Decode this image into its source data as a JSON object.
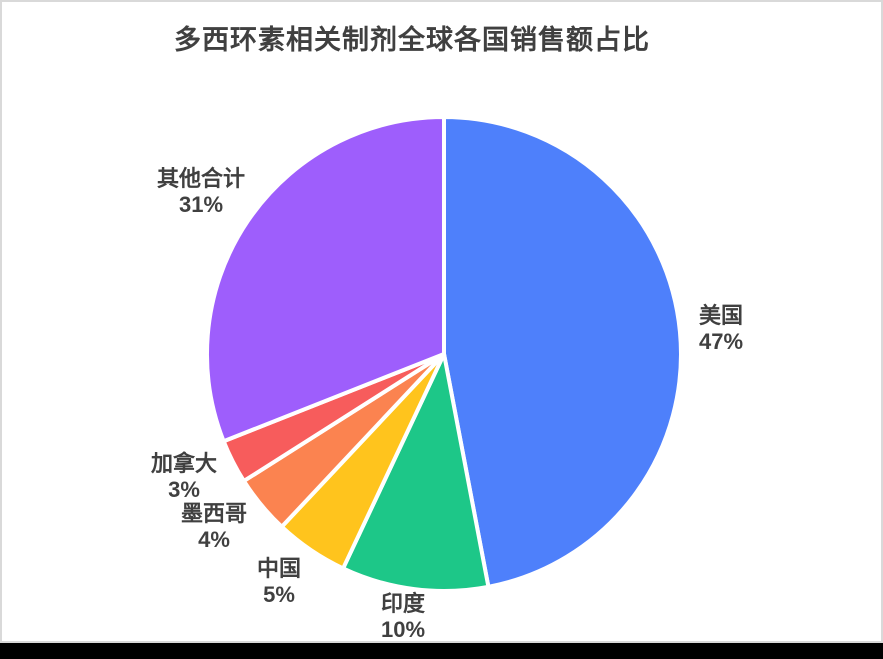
{
  "chart_data": {
    "type": "pie",
    "title": "多西环素相关制剂全球各国销售额占比",
    "start_angle_deg": 0,
    "direction": "clockwise",
    "legend": "none",
    "label_style": "outside, name + percent",
    "slices": [
      {
        "key": "usa",
        "label": "美国",
        "value": 47,
        "pct_label": "47%",
        "color": "#4e80fb"
      },
      {
        "key": "india",
        "label": "印度",
        "value": 10,
        "pct_label": "10%",
        "color": "#1dc788"
      },
      {
        "key": "china",
        "label": "中国",
        "value": 5,
        "pct_label": "5%",
        "color": "#ffc41d"
      },
      {
        "key": "mexico",
        "label": "墨西哥",
        "value": 4,
        "pct_label": "4%",
        "color": "#fb8350"
      },
      {
        "key": "canada",
        "label": "加拿大",
        "value": 3,
        "pct_label": "3%",
        "color": "#f75c5c"
      },
      {
        "key": "others",
        "label": "其他合计",
        "value": 31,
        "pct_label": "31%",
        "color": "#9e5efc"
      }
    ],
    "colors": {
      "title_text": "#404040",
      "label_text": "#404040",
      "slice_border": "#ffffff",
      "card_border": "#d9d9d9",
      "background": "#ffffff",
      "bottom_bar": "#000000"
    }
  }
}
